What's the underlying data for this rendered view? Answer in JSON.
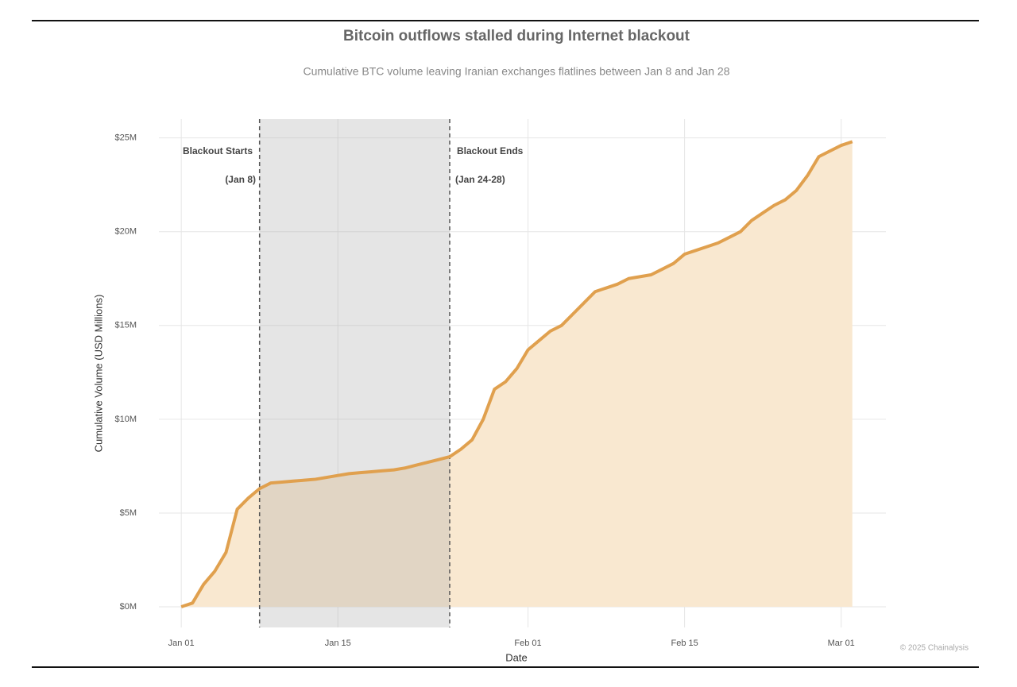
{
  "chart_data": {
    "type": "area",
    "title": "Bitcoin outflows stalled during Internet blackout",
    "subtitle": "Cumulative BTC volume leaving Iranian exchanges flatlines between Jan 8 and Jan 28",
    "x_label": "Date",
    "y_label": "Cumulative Volume (USD Millions)",
    "x": [
      "Jan 01",
      "Jan 02",
      "Jan 03",
      "Jan 04",
      "Jan 05",
      "Jan 06",
      "Jan 07",
      "Jan 08",
      "Jan 09",
      "Jan 10",
      "Jan 11",
      "Jan 12",
      "Jan 13",
      "Jan 14",
      "Jan 15",
      "Jan 16",
      "Jan 17",
      "Jan 18",
      "Jan 19",
      "Jan 20",
      "Jan 21",
      "Jan 22",
      "Jan 23",
      "Jan 24",
      "Jan 25",
      "Jan 26",
      "Jan 27",
      "Jan 28",
      "Jan 29",
      "Jan 30",
      "Jan 31",
      "Feb 01",
      "Feb 02",
      "Feb 03",
      "Feb 04",
      "Feb 05",
      "Feb 06",
      "Feb 07",
      "Feb 08",
      "Feb 09",
      "Feb 10",
      "Feb 11",
      "Feb 12",
      "Feb 13",
      "Feb 14",
      "Feb 15",
      "Feb 16",
      "Feb 17",
      "Feb 18",
      "Feb 19",
      "Feb 20",
      "Feb 21",
      "Feb 22",
      "Feb 23",
      "Feb 24",
      "Feb 25",
      "Feb 26",
      "Feb 27",
      "Feb 28",
      "Mar 01",
      "Mar 02"
    ],
    "values": [
      0,
      0.2,
      1.2,
      1.9,
      2.9,
      5.2,
      5.8,
      6.3,
      6.6,
      6.65,
      6.7,
      6.75,
      6.8,
      6.9,
      7.0,
      7.1,
      7.15,
      7.2,
      7.25,
      7.3,
      7.4,
      7.55,
      7.7,
      7.85,
      8.0,
      8.4,
      8.9,
      10.0,
      11.6,
      12.0,
      12.7,
      13.7,
      14.2,
      14.7,
      15.0,
      15.6,
      16.2,
      16.8,
      17.0,
      17.2,
      17.5,
      17.6,
      17.7,
      18.0,
      18.3,
      18.8,
      19.0,
      19.2,
      19.4,
      19.7,
      20.0,
      20.6,
      21.0,
      21.4,
      21.7,
      22.2,
      23.0,
      24.0,
      24.3,
      24.6,
      24.8
    ],
    "line_color": "#e0a04e",
    "area_color": "#f9e8d0",
    "xlim": [
      "Dec 30",
      "Mar 05"
    ],
    "xticks": [
      "Jan 01",
      "Jan 15",
      "Feb 01",
      "Feb 15",
      "Mar 01"
    ],
    "ylim": [
      -1.1,
      26
    ],
    "yticks": [
      {
        "value": 0,
        "label": "$0M"
      },
      {
        "value": 5,
        "label": "$5M"
      },
      {
        "value": 10,
        "label": "$10M"
      },
      {
        "value": 15,
        "label": "$15M"
      },
      {
        "value": 20,
        "label": "$20M"
      },
      {
        "value": 25,
        "label": "$25M"
      }
    ],
    "grid": true,
    "shaded_span": {
      "start": "Jan 08",
      "end": "Jan 25"
    },
    "annotations": [
      {
        "text": "Blackout Starts",
        "sub": "(Jan 8)"
      },
      {
        "text": "Blackout Ends",
        "sub": "(Jan 24-28)"
      }
    ],
    "credit": "© 2025 Chainalysis"
  }
}
